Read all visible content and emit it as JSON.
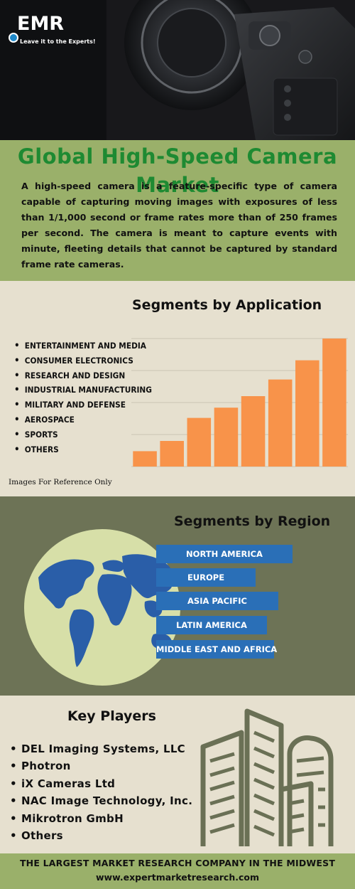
{
  "brand": {
    "logo_text": "EMR",
    "tagline": "Leave it to the Experts!"
  },
  "title": "Global High-Speed Camera Market",
  "description": "A high-speed camera is a feature-specific type of camera capable of capturing moving images with exposures of less than 1/1,000 second or frame rates more than of 250 frames per second. The camera is meant to capture events with minute, fleeting details that cannot be captured by standard frame rate cameras.",
  "application": {
    "heading": "Segments by Application",
    "items": [
      "ENTERTAINMENT AND MEDIA",
      "CONSUMER ELECTRONICS",
      "RESEARCH AND DESIGN",
      "INDUSTRIAL MANUFACTURING",
      "MILITARY AND DEFENSE",
      "AEROSPACE",
      "SPORTS",
      "OTHERS"
    ],
    "note": "Images For Reference Only"
  },
  "chart_data": {
    "type": "bar",
    "categories": [
      "",
      "",
      "",
      "",
      "",
      "",
      "",
      ""
    ],
    "values": [
      12,
      20,
      38,
      46,
      55,
      68,
      83,
      100
    ],
    "ylim": [
      0,
      100
    ],
    "grid": true,
    "bar_color": "#f8934a"
  },
  "region": {
    "heading": "Segments by Region",
    "items": [
      "NORTH AMERICA",
      "EUROPE",
      "ASIA PACIFIC",
      "LATIN AMERICA",
      "MIDDLE EAST AND AFRICA"
    ]
  },
  "players": {
    "heading": "Key Players",
    "items": [
      "DEL Imaging Systems, LLC",
      "Photron",
      "iX Cameras Ltd",
      "NAC Image Technology, Inc.",
      "Mikrotron GmbH",
      "Others"
    ]
  },
  "footer": {
    "line1": "THE LARGEST MARKET RESEARCH COMPANY IN THE MIDWEST",
    "line2": "www.expertmarketresearch.com"
  },
  "colors": {
    "green_band": "#9ab06a",
    "title_green": "#1e8a32",
    "cream": "#e6e0cf",
    "olive": "#6d7356",
    "blue": "#2a6fb7",
    "orange": "#f8934a"
  },
  "icons": [
    "camera-photo",
    "globe-icon",
    "buildings-icon",
    "logo-icon"
  ]
}
